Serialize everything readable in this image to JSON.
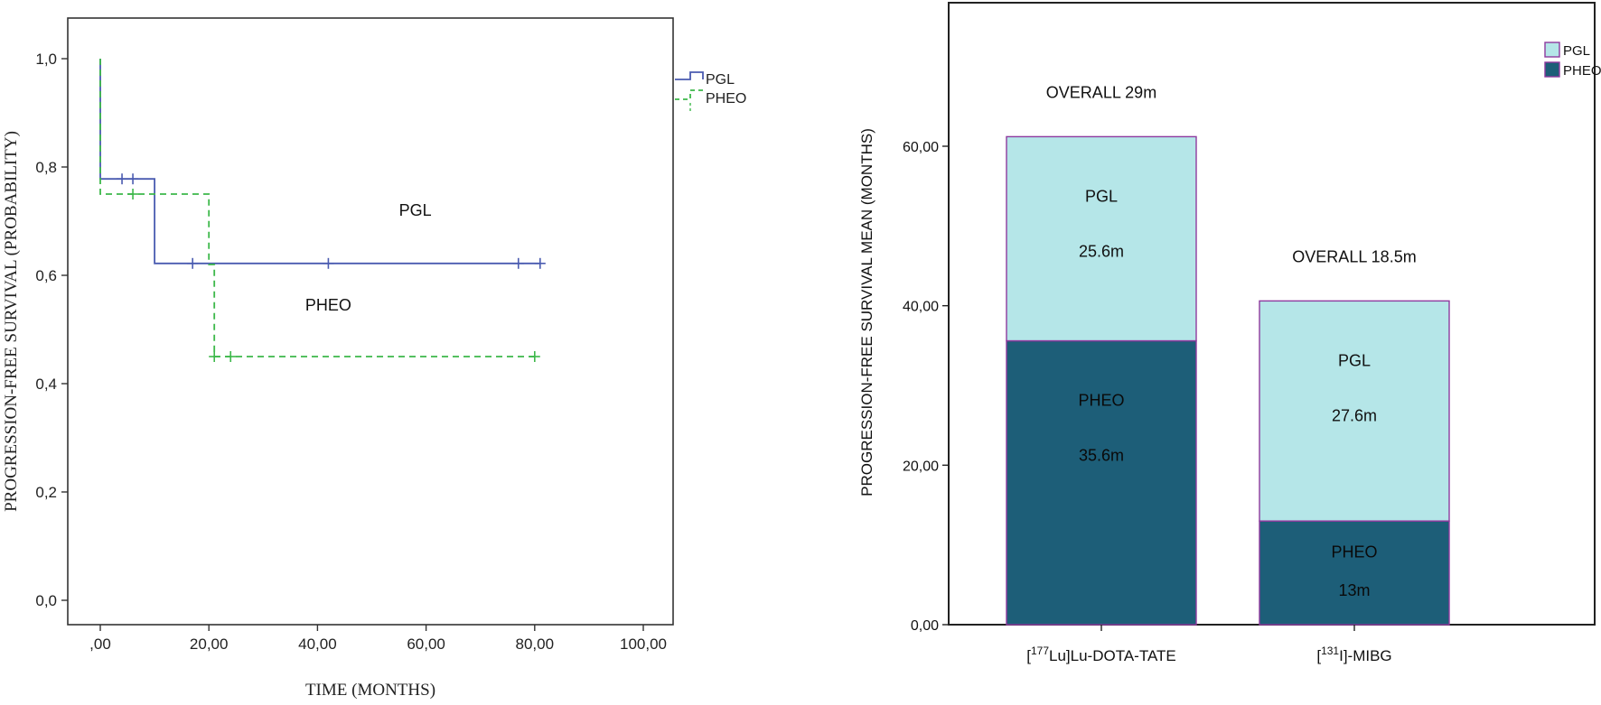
{
  "chart_data": [
    {
      "type": "line",
      "xlabel": "TIME (MONTHS)",
      "ylabel": "PROGRESSION-FREE SURVIVAL (PROBABILITY)",
      "xlim": [
        -5,
        105
      ],
      "ylim": [
        0,
        1.05
      ],
      "x_ticks": [
        0,
        20,
        40,
        60,
        80,
        100
      ],
      "x_tick_labels": [
        ",00",
        "20,00",
        "40,00",
        "60,00",
        "80,00",
        "100,00"
      ],
      "y_ticks": [
        0,
        0.2,
        0.4,
        0.6,
        0.8,
        1.0
      ],
      "y_tick_labels": [
        "0,0",
        "0,2",
        "0,4",
        "0,6",
        "0,8",
        "1,0"
      ],
      "grid": false,
      "legend_position": "top-right",
      "series": [
        {
          "name": "PGL",
          "color": "#4a5bb0",
          "dash": "solid",
          "steps": [
            [
              0,
              1.0
            ],
            [
              0,
              0.778
            ],
            [
              10,
              0.778
            ],
            [
              10,
              0.622
            ],
            [
              81,
              0.622
            ]
          ],
          "censored": [
            [
              4,
              0.778
            ],
            [
              6,
              0.778
            ],
            [
              17,
              0.622
            ],
            [
              42,
              0.622
            ],
            [
              77,
              0.622
            ],
            [
              81,
              0.622
            ]
          ]
        },
        {
          "name": "PHEO",
          "color": "#3db84a",
          "dash": "dashed",
          "steps": [
            [
              0,
              1.0
            ],
            [
              0,
              0.75
            ],
            [
              20,
              0.75
            ],
            [
              20,
              0.62
            ],
            [
              21,
              0.62
            ],
            [
              21,
              0.45
            ],
            [
              80,
              0.45
            ]
          ],
          "censored": [
            [
              6,
              0.75
            ],
            [
              21,
              0.45
            ],
            [
              24,
              0.45
            ],
            [
              80,
              0.45
            ]
          ]
        }
      ],
      "annotations": [
        {
          "text": "PGL",
          "x": 58,
          "y": 0.71
        },
        {
          "text": "PHEO",
          "x": 42,
          "y": 0.535
        }
      ]
    },
    {
      "type": "bar",
      "stacked": true,
      "ylabel": "PROGRESSION-FREE SURVIVAL  MEAN (MONTHS)",
      "ylim": [
        0,
        78
      ],
      "y_ticks": [
        0,
        20,
        40,
        60
      ],
      "y_tick_labels": [
        "0,00",
        "20,00",
        "40,00",
        "60,00"
      ],
      "categories": [
        {
          "prefix": "[",
          "sup": "177",
          "rest": "Lu]Lu-DOTA-TATE"
        },
        {
          "prefix": "[",
          "sup": "131",
          "rest": "I]-MIBG"
        }
      ],
      "series": [
        {
          "name": "PHEO",
          "color": "#1d5e78",
          "values": [
            35.6,
            13.0
          ],
          "labels": [
            "PHEO",
            "PHEO"
          ],
          "value_labels": [
            "35.6m",
            "13m"
          ]
        },
        {
          "name": "PGL",
          "color": "#b5e6e8",
          "values": [
            25.6,
            27.6
          ],
          "labels": [
            "PGL",
            "PGL"
          ],
          "value_labels": [
            "25.6m",
            "27.6m"
          ]
        }
      ],
      "overall_labels": [
        "OVERALL 29m",
        "OVERALL  18.5m"
      ],
      "bar_edge_color": "#8e3a9e",
      "legend_position": "top-right",
      "legend": [
        "PGL",
        "PHEO"
      ]
    }
  ]
}
